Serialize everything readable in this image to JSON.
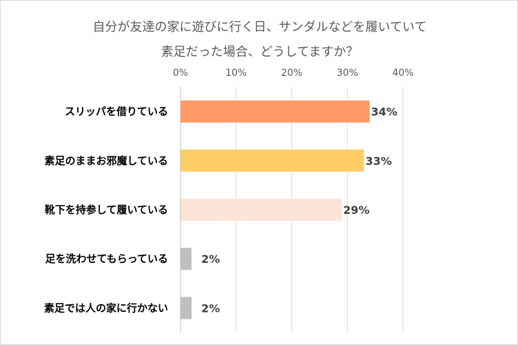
{
  "chart_data": {
    "type": "bar",
    "orientation": "horizontal",
    "title_lines": [
      "自分が友達の家に遊びに行く日、サンダルなどを履いていて",
      "素足だった場合、どうしてますか？"
    ],
    "categories": [
      "スリッパを借りている",
      "素足のままお邪魔している",
      "靴下を持参して履いている",
      "足を洗わせてもらっている",
      "素足では人の家に行かない"
    ],
    "values": [
      34,
      33,
      29,
      2,
      2
    ],
    "value_labels": [
      "34%",
      "33%",
      "29%",
      "2%",
      "2%"
    ],
    "bar_colors": [
      "#FF9966",
      "#FFCC66",
      "#FCE4D6",
      "#BFBFBF",
      "#BFBFBF"
    ],
    "xlim": [
      0,
      40
    ],
    "x_ticks": [
      0,
      10,
      20,
      30,
      40
    ],
    "x_tick_labels": [
      "0%",
      "10%",
      "20%",
      "30%",
      "40%"
    ],
    "axis_position": "top",
    "grid": true,
    "legend": "none"
  }
}
